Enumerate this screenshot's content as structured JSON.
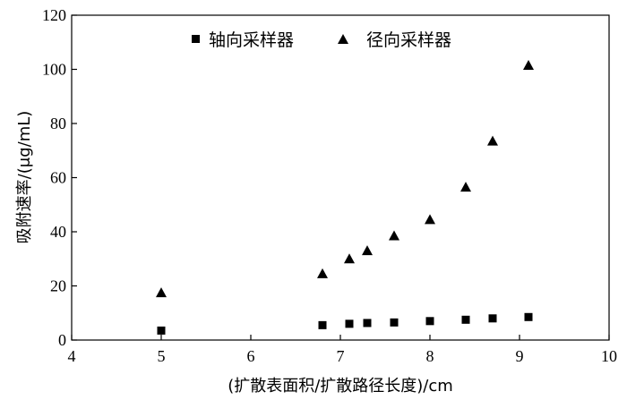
{
  "chart_data": {
    "type": "scatter",
    "title": "",
    "xlabel": "(扩散表面积/扩散路径长度)/cm",
    "ylabel": "吸附速率/(μg/mL)",
    "xlim": [
      4,
      10
    ],
    "ylim": [
      0,
      120
    ],
    "xticks": [
      4,
      5,
      6,
      7,
      8,
      9,
      10
    ],
    "yticks": [
      0,
      20,
      40,
      60,
      80,
      100,
      120
    ],
    "grid": false,
    "legend_position": "top-center",
    "series": [
      {
        "name": "轴向采样器",
        "marker": "square",
        "color": "#000000",
        "x": [
          5.0,
          6.8,
          7.1,
          7.3,
          7.6,
          8.0,
          8.4,
          8.7,
          9.1
        ],
        "y": [
          3.5,
          5.5,
          6.0,
          6.3,
          6.5,
          7.0,
          7.5,
          8.0,
          8.5
        ]
      },
      {
        "name": "径向采样器",
        "marker": "triangle",
        "color": "#000000",
        "x": [
          5.0,
          6.8,
          7.1,
          7.3,
          7.6,
          8.0,
          8.4,
          8.7,
          9.1
        ],
        "y": [
          17.5,
          24.5,
          30.0,
          33.0,
          38.5,
          44.5,
          56.5,
          73.5,
          101.5
        ]
      }
    ]
  }
}
